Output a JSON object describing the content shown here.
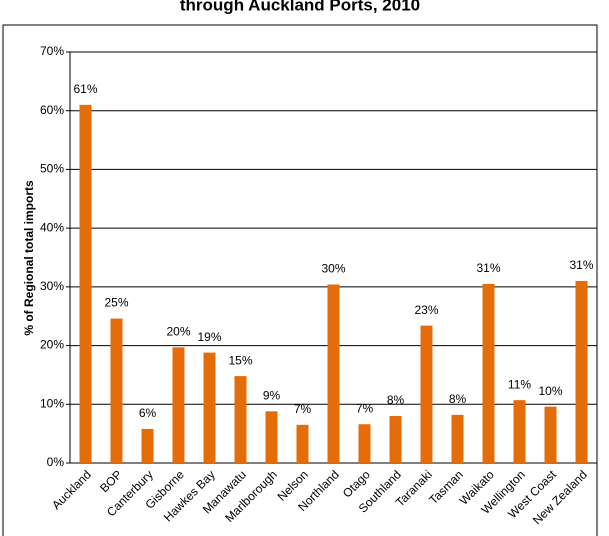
{
  "chart_data": {
    "type": "bar",
    "title": "through Auckland Ports, 2010",
    "y_label": "% of Regional total imports",
    "categories": [
      "Auckland",
      "BOP",
      "Canterbury",
      "Gisborne",
      "Hawkes Bay",
      "Manawatu",
      "Marlborough",
      "Nelson",
      "Northland",
      "Otago",
      "Southland",
      "Taranaki",
      "Tasman",
      "Waikato",
      "Wellington",
      "West Coast",
      "New Zealand"
    ],
    "values": [
      61,
      24.6,
      5.8,
      19.7,
      18.8,
      14.8,
      8.8,
      6.5,
      30.4,
      6.6,
      8.0,
      23.4,
      8.2,
      30.5,
      10.7,
      9.6,
      31.0
    ],
    "value_labels": [
      "61%",
      "25%",
      "6%",
      "20%",
      "19%",
      "15%",
      "9%",
      "7%",
      "30%",
      "7%",
      "8%",
      "23%",
      "8%",
      "31%",
      "11%",
      "10%",
      "31%"
    ],
    "color": "#e46c0a",
    "ylim": [
      0,
      70
    ],
    "yticks": [
      {
        "value": 0,
        "label": "0%"
      },
      {
        "value": 10,
        "label": "10%"
      },
      {
        "value": 20,
        "label": "20%"
      },
      {
        "value": 30,
        "label": "30%"
      },
      {
        "value": 40,
        "label": "40%"
      },
      {
        "value": 50,
        "label": "50%"
      },
      {
        "value": 60,
        "label": "60%"
      },
      {
        "value": 70,
        "label": "70%"
      }
    ],
    "grid": true
  }
}
